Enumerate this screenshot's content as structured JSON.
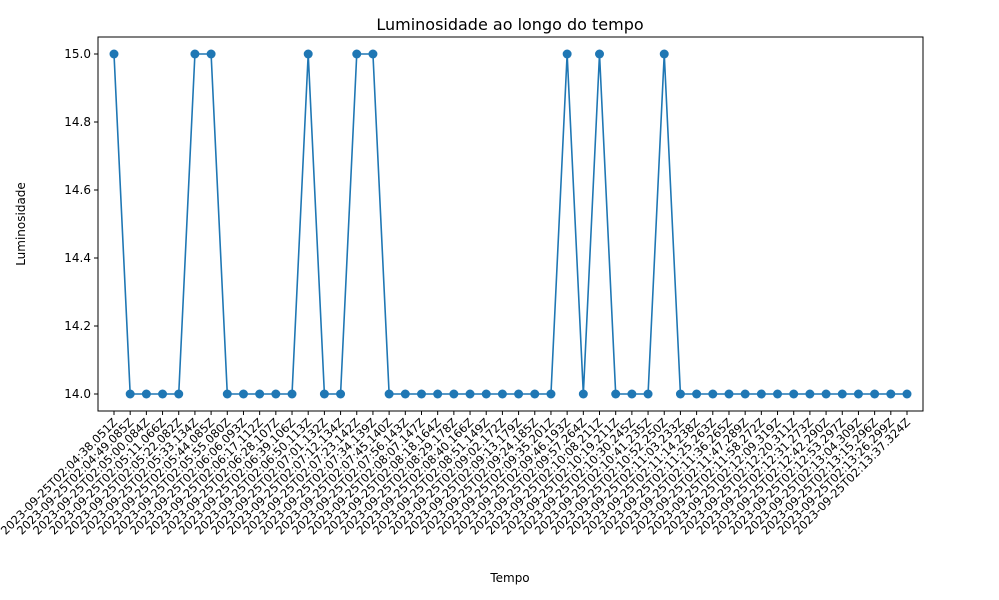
{
  "chart_data": {
    "type": "line",
    "title": "Luminosidade ao longo do tempo",
    "xlabel": "Tempo",
    "ylabel": "Luminosidade",
    "ylim": [
      13.95,
      15.05
    ],
    "yticks": [
      "14.0",
      "14.2",
      "14.4",
      "14.6",
      "14.8",
      "15.0"
    ],
    "grid": false,
    "color": "#1f77b4",
    "x": [
      "2023-09-25T02:04:38.051Z",
      "2023-09-25T02:04:49.085Z",
      "2023-09-25T02:05:00.084Z",
      "2023-09-25T02:05:11.066Z",
      "2023-09-25T02:05:22.082Z",
      "2023-09-25T02:05:33.134Z",
      "2023-09-25T02:05:44.085Z",
      "2023-09-25T02:05:55.080Z",
      "2023-09-25T02:06:06.093Z",
      "2023-09-25T02:06:17.112Z",
      "2023-09-25T02:06:28.107Z",
      "2023-09-25T02:06:39.106Z",
      "2023-09-25T02:06:50.113Z",
      "2023-09-25T02:07:01.132Z",
      "2023-09-25T02:07:12.134Z",
      "2023-09-25T02:07:23.142Z",
      "2023-09-25T02:07:34.139Z",
      "2023-09-25T02:07:45.140Z",
      "2023-09-25T02:07:56.143Z",
      "2023-09-25T02:08:07.147Z",
      "2023-09-25T02:08:18.164Z",
      "2023-09-25T02:08:29.178Z",
      "2023-09-25T02:08:40.166Z",
      "2023-09-25T02:08:51.149Z",
      "2023-09-25T02:09:02.172Z",
      "2023-09-25T02:09:13.179Z",
      "2023-09-25T02:09:24.185Z",
      "2023-09-25T02:09:35.201Z",
      "2023-09-25T02:09:46.193Z",
      "2023-09-25T02:09:57.264Z",
      "2023-09-25T02:10:08.211Z",
      "2023-09-25T02:10:19.211Z",
      "2023-09-25T02:10:30.245Z",
      "2023-09-25T02:10:41.235Z",
      "2023-09-25T02:10:52.250Z",
      "2023-09-25T02:11:03.233Z",
      "2023-09-25T02:11:14.238Z",
      "2023-09-25T02:11:25.263Z",
      "2023-09-25T02:11:36.265Z",
      "2023-09-25T02:11:47.289Z",
      "2023-09-25T02:11:58.272Z",
      "2023-09-25T02:12:09.319Z",
      "2023-09-25T02:12:20.311Z",
      "2023-09-25T02:12:31.273Z",
      "2023-09-25T02:12:42.290Z",
      "2023-09-25T02:12:53.297Z",
      "2023-09-25T02:13:04.309Z",
      "2023-09-25T02:13:15.296Z",
      "2023-09-25T02:13:26.299Z",
      "2023-09-25T02:13:37.324Z"
    ],
    "values": [
      15,
      14,
      14,
      14,
      14,
      15,
      15,
      14,
      14,
      14,
      14,
      14,
      15,
      14,
      14,
      15,
      15,
      14,
      14,
      14,
      14,
      14,
      14,
      14,
      14,
      14,
      14,
      14,
      15,
      14,
      15,
      14,
      14,
      14,
      15,
      14,
      14,
      14,
      14,
      14,
      14,
      14,
      14,
      14,
      14,
      14,
      14,
      14,
      14,
      14
    ]
  }
}
